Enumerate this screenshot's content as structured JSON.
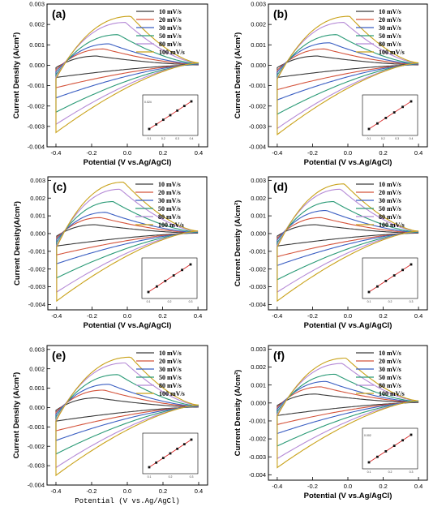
{
  "colors": {
    "10": "#3a3a3a",
    "20": "#d4533b",
    "30": "#3a5ec2",
    "50": "#2a9a76",
    "80": "#b58ad6",
    "100": "#c9a21a",
    "fit_line": "#d62020"
  },
  "chart_data": [
    {
      "type": "line",
      "panel_label": "(a)",
      "xlabel": "Potential (V vs.Ag/AgCl)",
      "ylabel": "Current Density (A/cm²)",
      "xlim": [
        -0.45,
        0.45
      ],
      "ylim": [
        -0.004,
        0.003
      ],
      "x_ticks": [
        "-0.4",
        "-0.2",
        "0.0",
        "0.2",
        "0.4"
      ],
      "y_ticks": [
        "0.003",
        "0.002",
        "0.001",
        "0.000",
        "-0.001",
        "-0.002",
        "-0.003",
        "-0.004"
      ],
      "series": [
        {
          "name": "10  mV/s",
          "peak_x": -0.17,
          "peak_y": 0.00045,
          "min_y": -0.0006
        },
        {
          "name": "20  mV/s",
          "peak_x": -0.13,
          "peak_y": 0.0008,
          "min_y": -0.0011
        },
        {
          "name": "30  mV/s",
          "peak_x": -0.1,
          "peak_y": 0.00105,
          "min_y": -0.0016
        },
        {
          "name": "50  mV/s",
          "peak_x": -0.05,
          "peak_y": 0.0015,
          "min_y": -0.0023
        },
        {
          "name": "80  mV/s",
          "peak_x": -0.01,
          "peak_y": 0.0021,
          "min_y": -0.0029
        },
        {
          "name": "100 mV/s",
          "peak_x": 0.02,
          "peak_y": 0.0024,
          "min_y": -0.0033
        }
      ],
      "inset": {
        "x_ticks": [
          "0.1",
          "0.2",
          "0.3",
          "0.4"
        ],
        "y_tick": "0.024",
        "points": 7
      }
    },
    {
      "type": "line",
      "panel_label": "(b)",
      "xlabel": "Potential (V vs.Ag/AgCl)",
      "ylabel": "Current Density (A/cm²)",
      "xlim": [
        -0.45,
        0.45
      ],
      "ylim": [
        -0.004,
        0.003
      ],
      "x_ticks": [
        "-0.4",
        "-0.2",
        "0.0",
        "0.2",
        "0.4"
      ],
      "y_ticks": [
        "0.003",
        "0.002",
        "0.001",
        "0.000",
        "-0.001",
        "-0.002",
        "-0.003",
        "-0.004"
      ],
      "series": [
        {
          "name": "10  mV/s",
          "peak_x": -0.17,
          "peak_y": 0.00045,
          "min_y": -0.0006
        },
        {
          "name": "20  mV/s",
          "peak_x": -0.13,
          "peak_y": 0.0008,
          "min_y": -0.0012
        },
        {
          "name": "30  mV/s",
          "peak_x": -0.1,
          "peak_y": 0.0011,
          "min_y": -0.0017
        },
        {
          "name": "50  mV/s",
          "peak_x": -0.06,
          "peak_y": 0.0015,
          "min_y": -0.0024
        },
        {
          "name": "80  mV/s",
          "peak_x": -0.02,
          "peak_y": 0.0021,
          "min_y": -0.0031
        },
        {
          "name": "100 mV/s",
          "peak_x": 0.01,
          "peak_y": 0.0024,
          "min_y": -0.0034
        }
      ],
      "inset": {
        "x_ticks": [
          "0.1",
          "0.2",
          "0.3",
          "0.4"
        ],
        "y_tick": "",
        "points": 6
      }
    },
    {
      "type": "line",
      "panel_label": "(c)",
      "xlabel": "Potential (V vs.Ag/AgCl)",
      "ylabel": "Current Density(A/cm²)",
      "xlim": [
        -0.45,
        0.45
      ],
      "ylim": [
        -0.0043,
        0.0032
      ],
      "x_ticks": [
        "-0.4",
        "-0.2",
        "0.0",
        "0.2",
        "0.4"
      ],
      "y_ticks": [
        "0.003",
        "0.002",
        "0.001",
        "0.000",
        "-0.001",
        "-0.002",
        "-0.003",
        "-0.004"
      ],
      "series": [
        {
          "name": "10  mV/s",
          "peak_x": -0.18,
          "peak_y": 0.0005,
          "min_y": -0.0007
        },
        {
          "name": "20  mV/s",
          "peak_x": -0.15,
          "peak_y": 0.0009,
          "min_y": -0.0012
        },
        {
          "name": "30  mV/s",
          "peak_x": -0.12,
          "peak_y": 0.0012,
          "min_y": -0.0017
        },
        {
          "name": "50  mV/s",
          "peak_x": -0.08,
          "peak_y": 0.0018,
          "min_y": -0.0025
        },
        {
          "name": "80  mV/s",
          "peak_x": -0.04,
          "peak_y": 0.0025,
          "min_y": -0.0033
        },
        {
          "name": "100 mV/s",
          "peak_x": -0.02,
          "peak_y": 0.0029,
          "min_y": -0.0038
        }
      ],
      "inset": {
        "x_ticks": [
          "0.1",
          "0.2",
          "0.3"
        ],
        "y_tick": "",
        "points": 6
      }
    },
    {
      "type": "line",
      "panel_label": "(d)",
      "xlabel": "Potential (V vs.Ag/AgCl)",
      "ylabel": "Current Density (A/cm²)",
      "xlim": [
        -0.45,
        0.45
      ],
      "ylim": [
        -0.0043,
        0.0032
      ],
      "x_ticks": [
        "-0.4",
        "-0.2",
        "0.0",
        "0.2",
        "0.4"
      ],
      "y_ticks": [
        "0.003",
        "0.002",
        "0.001",
        "0.000",
        "-0.001",
        "-0.002",
        "-0.003",
        "-0.004"
      ],
      "series": [
        {
          "name": "10  mV/s",
          "peak_x": -0.18,
          "peak_y": 0.0005,
          "min_y": -0.0007
        },
        {
          "name": "20  mV/s",
          "peak_x": -0.15,
          "peak_y": 0.0009,
          "min_y": -0.0013
        },
        {
          "name": "30  mV/s",
          "peak_x": -0.12,
          "peak_y": 0.0013,
          "min_y": -0.0018
        },
        {
          "name": "50  mV/s",
          "peak_x": -0.08,
          "peak_y": 0.0018,
          "min_y": -0.0026
        },
        {
          "name": "80  mV/s",
          "peak_x": -0.04,
          "peak_y": 0.0025,
          "min_y": -0.0033
        },
        {
          "name": "100 mV/s",
          "peak_x": -0.02,
          "peak_y": 0.0028,
          "min_y": -0.0038
        }
      ],
      "inset": {
        "x_ticks": [
          "0.1",
          "0.2",
          "0.3"
        ],
        "y_tick": "",
        "points": 6
      }
    },
    {
      "type": "line",
      "panel_label": "(e)",
      "xlabel": "Potential  (V vs.Ag/AgCl)",
      "ylabel": "Current Density (A/cm²)",
      "xlim": [
        -0.45,
        0.45
      ],
      "ylim": [
        -0.004,
        0.0032
      ],
      "x_ticks": [
        "-0.4",
        "-0.2",
        "0.0",
        "0.2",
        "0.4"
      ],
      "y_ticks": [
        "0.003",
        "0.002",
        "0.001",
        "0.000",
        "-0.001",
        "-0.002",
        "-0.003",
        "-0.004"
      ],
      "series": [
        {
          "name": "10  mV/s",
          "peak_x": -0.17,
          "peak_y": 0.0005,
          "min_y": -0.0007
        },
        {
          "name": "20  mV/s",
          "peak_x": -0.13,
          "peak_y": 0.0009,
          "min_y": -0.0012
        },
        {
          "name": "30  mV/s",
          "peak_x": -0.1,
          "peak_y": 0.0012,
          "min_y": -0.0017
        },
        {
          "name": "50  mV/s",
          "peak_x": -0.05,
          "peak_y": 0.0017,
          "min_y": -0.0024
        },
        {
          "name": "80  mV/s",
          "peak_x": -0.01,
          "peak_y": 0.0023,
          "min_y": -0.0031
        },
        {
          "name": "100 mV/s",
          "peak_x": 0.02,
          "peak_y": 0.0026,
          "min_y": -0.0035
        }
      ],
      "inset": {
        "x_ticks": [
          "0.1",
          "0.2",
          "0.3"
        ],
        "y_tick": "",
        "points": 7
      }
    },
    {
      "type": "line",
      "panel_label": "(f)",
      "xlabel": "Potential (V vs.Ag/AgCl)",
      "ylabel": "Current Density (A/cm²)",
      "xlim": [
        -0.45,
        0.45
      ],
      "ylim": [
        -0.0043,
        0.0032
      ],
      "x_ticks": [
        "-0.4",
        "-0.2",
        "0.0",
        "0.2",
        "0.4"
      ],
      "y_ticks": [
        "0.003",
        "0.002",
        "0.001",
        "0.000",
        "-0.001",
        "-0.002",
        "-0.003",
        "-0.004"
      ],
      "series": [
        {
          "name": "10  mV/s",
          "peak_x": -0.18,
          "peak_y": 0.0005,
          "min_y": -0.0007
        },
        {
          "name": "20  mV/s",
          "peak_x": -0.15,
          "peak_y": 0.0009,
          "min_y": -0.0012
        },
        {
          "name": "30  mV/s",
          "peak_x": -0.12,
          "peak_y": 0.0012,
          "min_y": -0.0017
        },
        {
          "name": "50  mV/s",
          "peak_x": -0.07,
          "peak_y": 0.0016,
          "min_y": -0.0024
        },
        {
          "name": "80  mV/s",
          "peak_x": -0.03,
          "peak_y": 0.0022,
          "min_y": -0.0031
        },
        {
          "name": "100 mV/s",
          "peak_x": -0.01,
          "peak_y": 0.0025,
          "min_y": -0.0036
        }
      ],
      "inset": {
        "x_ticks": [
          "0.1",
          "0.2",
          "0.3"
        ],
        "y_tick": "0.002",
        "points": 6
      }
    }
  ]
}
